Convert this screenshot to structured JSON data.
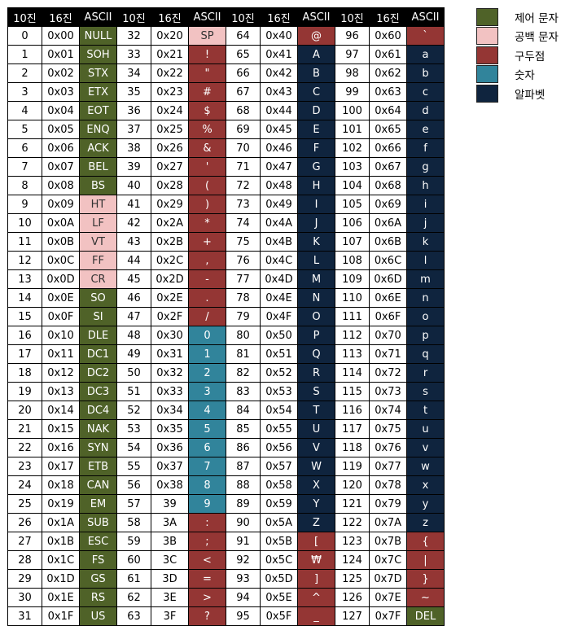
{
  "colors": {
    "control": "#4f6228",
    "space": "#f2c2c2",
    "punct": "#943634",
    "digit": "#31849b",
    "alpha": "#0f243e"
  },
  "headers": [
    "10진",
    "16진",
    "ASCII",
    "10진",
    "16진",
    "ASCII",
    "10진",
    "16진",
    "ASCII",
    "10진",
    "16진",
    "ASCII"
  ],
  "legend": [
    {
      "label": "제어 문자",
      "cat": "control"
    },
    {
      "label": "공백 문자",
      "cat": "space"
    },
    {
      "label": "구두점",
      "cat": "punct"
    },
    {
      "label": "숫자",
      "cat": "digit"
    },
    {
      "label": "알파벳",
      "cat": "alpha"
    }
  ],
  "rows": [
    [
      [
        "0",
        "0x00",
        "NULL",
        "control"
      ],
      [
        "32",
        "0x20",
        "SP",
        "space"
      ],
      [
        "64",
        "0x40",
        "@",
        "punct"
      ],
      [
        "96",
        "0x60",
        "`",
        "punct"
      ]
    ],
    [
      [
        "1",
        "0x01",
        "SOH",
        "control"
      ],
      [
        "33",
        "0x21",
        "!",
        "punct"
      ],
      [
        "65",
        "0x41",
        "A",
        "alpha"
      ],
      [
        "97",
        "0x61",
        "a",
        "alpha"
      ]
    ],
    [
      [
        "2",
        "0x02",
        "STX",
        "control"
      ],
      [
        "34",
        "0x22",
        "\"",
        "punct"
      ],
      [
        "66",
        "0x42",
        "B",
        "alpha"
      ],
      [
        "98",
        "0x62",
        "b",
        "alpha"
      ]
    ],
    [
      [
        "3",
        "0x03",
        "ETX",
        "control"
      ],
      [
        "35",
        "0x23",
        "#",
        "punct"
      ],
      [
        "67",
        "0x43",
        "C",
        "alpha"
      ],
      [
        "99",
        "0x63",
        "c",
        "alpha"
      ]
    ],
    [
      [
        "4",
        "0x04",
        "EOT",
        "control"
      ],
      [
        "36",
        "0x24",
        "$",
        "punct"
      ],
      [
        "68",
        "0x44",
        "D",
        "alpha"
      ],
      [
        "100",
        "0x64",
        "d",
        "alpha"
      ]
    ],
    [
      [
        "5",
        "0x05",
        "ENQ",
        "control"
      ],
      [
        "37",
        "0x25",
        "%",
        "punct"
      ],
      [
        "69",
        "0x45",
        "E",
        "alpha"
      ],
      [
        "101",
        "0x65",
        "e",
        "alpha"
      ]
    ],
    [
      [
        "6",
        "0x06",
        "ACK",
        "control"
      ],
      [
        "38",
        "0x26",
        "&",
        "punct"
      ],
      [
        "70",
        "0x46",
        "F",
        "alpha"
      ],
      [
        "102",
        "0x66",
        "f",
        "alpha"
      ]
    ],
    [
      [
        "7",
        "0x07",
        "BEL",
        "control"
      ],
      [
        "39",
        "0x27",
        "'",
        "punct"
      ],
      [
        "71",
        "0x47",
        "G",
        "alpha"
      ],
      [
        "103",
        "0x67",
        "g",
        "alpha"
      ]
    ],
    [
      [
        "8",
        "0x08",
        "BS",
        "control"
      ],
      [
        "40",
        "0x28",
        "(",
        "punct"
      ],
      [
        "72",
        "0x48",
        "H",
        "alpha"
      ],
      [
        "104",
        "0x68",
        "h",
        "alpha"
      ]
    ],
    [
      [
        "9",
        "0x09",
        "HT",
        "space"
      ],
      [
        "41",
        "0x29",
        ")",
        "punct"
      ],
      [
        "73",
        "0x49",
        "I",
        "alpha"
      ],
      [
        "105",
        "0x69",
        "i",
        "alpha"
      ]
    ],
    [
      [
        "10",
        "0x0A",
        "LF",
        "space"
      ],
      [
        "42",
        "0x2A",
        "*",
        "punct"
      ],
      [
        "74",
        "0x4A",
        "J",
        "alpha"
      ],
      [
        "106",
        "0x6A",
        "j",
        "alpha"
      ]
    ],
    [
      [
        "11",
        "0x0B",
        "VT",
        "space"
      ],
      [
        "43",
        "0x2B",
        "+",
        "punct"
      ],
      [
        "75",
        "0x4B",
        "K",
        "alpha"
      ],
      [
        "107",
        "0x6B",
        "k",
        "alpha"
      ]
    ],
    [
      [
        "12",
        "0x0C",
        "FF",
        "space"
      ],
      [
        "44",
        "0x2C",
        ",",
        "punct"
      ],
      [
        "76",
        "0x4C",
        "L",
        "alpha"
      ],
      [
        "108",
        "0x6C",
        "l",
        "alpha"
      ]
    ],
    [
      [
        "13",
        "0x0D",
        "CR",
        "space"
      ],
      [
        "45",
        "0x2D",
        "-",
        "punct"
      ],
      [
        "77",
        "0x4D",
        "M",
        "alpha"
      ],
      [
        "109",
        "0x6D",
        "m",
        "alpha"
      ]
    ],
    [
      [
        "14",
        "0x0E",
        "SO",
        "control"
      ],
      [
        "46",
        "0x2E",
        ".",
        "punct"
      ],
      [
        "78",
        "0x4E",
        "N",
        "alpha"
      ],
      [
        "110",
        "0x6E",
        "n",
        "alpha"
      ]
    ],
    [
      [
        "15",
        "0x0F",
        "SI",
        "control"
      ],
      [
        "47",
        "0x2F",
        "/",
        "punct"
      ],
      [
        "79",
        "0x4F",
        "O",
        "alpha"
      ],
      [
        "111",
        "0x6F",
        "o",
        "alpha"
      ]
    ],
    [
      [
        "16",
        "0x10",
        "DLE",
        "control"
      ],
      [
        "48",
        "0x30",
        "0",
        "digit"
      ],
      [
        "80",
        "0x50",
        "P",
        "alpha"
      ],
      [
        "112",
        "0x70",
        "p",
        "alpha"
      ]
    ],
    [
      [
        "17",
        "0x11",
        "DC1",
        "control"
      ],
      [
        "49",
        "0x31",
        "1",
        "digit"
      ],
      [
        "81",
        "0x51",
        "Q",
        "alpha"
      ],
      [
        "113",
        "0x71",
        "q",
        "alpha"
      ]
    ],
    [
      [
        "18",
        "0x12",
        "DC2",
        "control"
      ],
      [
        "50",
        "0x32",
        "2",
        "digit"
      ],
      [
        "82",
        "0x52",
        "R",
        "alpha"
      ],
      [
        "114",
        "0x72",
        "r",
        "alpha"
      ]
    ],
    [
      [
        "19",
        "0x13",
        "DC3",
        "control"
      ],
      [
        "51",
        "0x33",
        "3",
        "digit"
      ],
      [
        "83",
        "0x53",
        "S",
        "alpha"
      ],
      [
        "115",
        "0x73",
        "s",
        "alpha"
      ]
    ],
    [
      [
        "20",
        "0x14",
        "DC4",
        "control"
      ],
      [
        "52",
        "0x34",
        "4",
        "digit"
      ],
      [
        "84",
        "0x54",
        "T",
        "alpha"
      ],
      [
        "116",
        "0x74",
        "t",
        "alpha"
      ]
    ],
    [
      [
        "21",
        "0x15",
        "NAK",
        "control"
      ],
      [
        "53",
        "0x35",
        "5",
        "digit"
      ],
      [
        "85",
        "0x55",
        "U",
        "alpha"
      ],
      [
        "117",
        "0x75",
        "u",
        "alpha"
      ]
    ],
    [
      [
        "22",
        "0x16",
        "SYN",
        "control"
      ],
      [
        "54",
        "0x36",
        "6",
        "digit"
      ],
      [
        "86",
        "0x56",
        "V",
        "alpha"
      ],
      [
        "118",
        "0x76",
        "v",
        "alpha"
      ]
    ],
    [
      [
        "23",
        "0x17",
        "ETB",
        "control"
      ],
      [
        "55",
        "0x37",
        "7",
        "digit"
      ],
      [
        "87",
        "0x57",
        "W",
        "alpha"
      ],
      [
        "119",
        "0x77",
        "w",
        "alpha"
      ]
    ],
    [
      [
        "24",
        "0x18",
        "CAN",
        "control"
      ],
      [
        "56",
        "0x38",
        "8",
        "digit"
      ],
      [
        "88",
        "0x58",
        "X",
        "alpha"
      ],
      [
        "120",
        "0x78",
        "x",
        "alpha"
      ]
    ],
    [
      [
        "25",
        "0x19",
        "EM",
        "control"
      ],
      [
        "57",
        "39",
        "9",
        "digit"
      ],
      [
        "89",
        "0x59",
        "Y",
        "alpha"
      ],
      [
        "121",
        "0x79",
        "y",
        "alpha"
      ]
    ],
    [
      [
        "26",
        "0x1A",
        "SUB",
        "control"
      ],
      [
        "58",
        "3A",
        ":",
        "punct"
      ],
      [
        "90",
        "0x5A",
        "Z",
        "alpha"
      ],
      [
        "122",
        "0x7A",
        "z",
        "alpha"
      ]
    ],
    [
      [
        "27",
        "0x1B",
        "ESC",
        "control"
      ],
      [
        "59",
        "3B",
        ";",
        "punct"
      ],
      [
        "91",
        "0x5B",
        "[",
        "punct"
      ],
      [
        "123",
        "0x7B",
        "{",
        "punct"
      ]
    ],
    [
      [
        "28",
        "0x1C",
        "FS",
        "control"
      ],
      [
        "60",
        "3C",
        "<",
        "punct"
      ],
      [
        "92",
        "0x5C",
        "₩",
        "punct"
      ],
      [
        "124",
        "0x7C",
        "|",
        "punct"
      ]
    ],
    [
      [
        "29",
        "0x1D",
        "GS",
        "control"
      ],
      [
        "61",
        "3D",
        "=",
        "punct"
      ],
      [
        "93",
        "0x5D",
        "]",
        "punct"
      ],
      [
        "125",
        "0x7D",
        "}",
        "punct"
      ]
    ],
    [
      [
        "30",
        "0x1E",
        "RS",
        "control"
      ],
      [
        "62",
        "3E",
        ">",
        "punct"
      ],
      [
        "94",
        "0x5E",
        "^",
        "punct"
      ],
      [
        "126",
        "0x7E",
        "~",
        "punct"
      ]
    ],
    [
      [
        "31",
        "0x1F",
        "US",
        "control"
      ],
      [
        "63",
        "3F",
        "?",
        "punct"
      ],
      [
        "95",
        "0x5F",
        "_",
        "punct"
      ],
      [
        "127",
        "0x7F",
        "DEL",
        "control"
      ]
    ]
  ],
  "section_breaks": [
    9,
    14,
    16,
    26,
    27
  ]
}
